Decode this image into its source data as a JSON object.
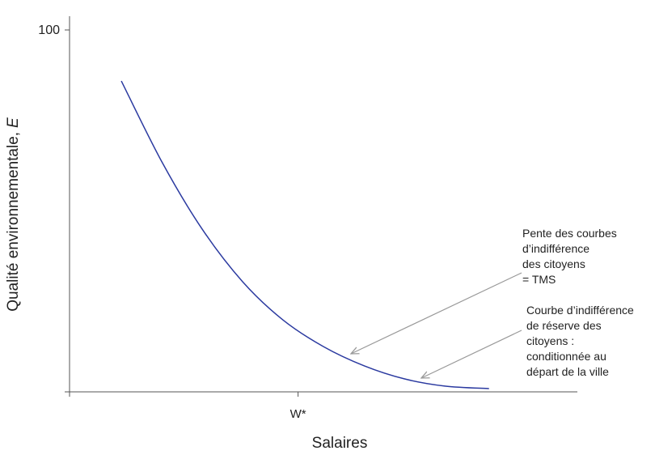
{
  "chart_data": {
    "type": "line",
    "xlabel": "Salaires",
    "ylabel": [
      "Qualité environnementale,",
      "E"
    ],
    "xlim": [
      0,
      100
    ],
    "xticks": [
      {
        "value": 45,
        "label": "W*"
      }
    ],
    "ylim": [
      0,
      100
    ],
    "yticks": [
      100
    ],
    "series": [
      {
        "color": "#2b3aa0",
        "x": [
          10.2,
          18.2,
          26.1,
          34.1,
          42.0,
          50.0,
          58.0,
          65.9,
          73.9,
          82.6
        ],
        "values": [
          85.9,
          63.5,
          45.0,
          30.4,
          19.9,
          12.5,
          7.2,
          3.6,
          1.6,
          0.9
        ]
      }
    ],
    "annotations": [
      {
        "lines": [
          "Pente des courbes",
          "d’indifférence",
          "des citoyens",
          "= TMS"
        ]
      },
      {
        "lines": [
          "Courbe d’indifférence",
          "de réserve des",
          "citoyens :",
          "conditionnée au",
          "départ de la ville"
        ]
      }
    ]
  }
}
